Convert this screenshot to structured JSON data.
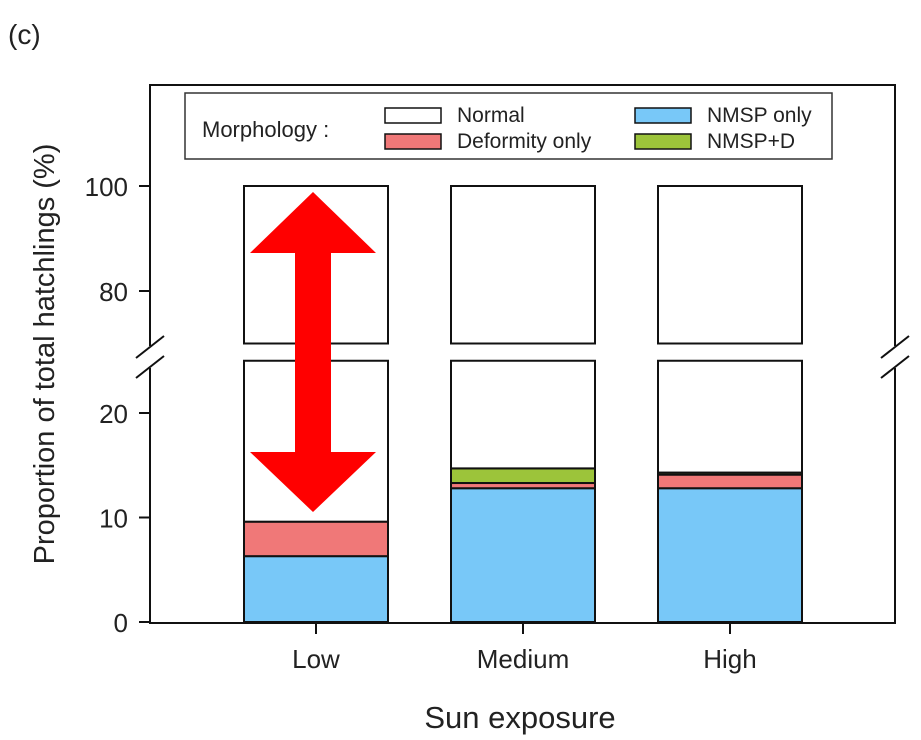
{
  "panel_label": "(c)",
  "legend": {
    "title": "Morphology :",
    "items": [
      {
        "label": "Normal",
        "color": "#ffffff"
      },
      {
        "label": "Deformity only",
        "color": "#f07878"
      },
      {
        "label": "NMSP only",
        "color": "#78c8f8"
      },
      {
        "label": "NMSP+D",
        "color": "#9cc43a"
      }
    ]
  },
  "annotation": {
    "type": "double-headed-arrow",
    "color": "#ff0000"
  },
  "chart_data": {
    "type": "bar",
    "stacked": true,
    "title": "",
    "xlabel": "Sun exposure",
    "ylabel": "Proportion of total hatchlings (%)",
    "categories": [
      "Low",
      "Medium",
      "High"
    ],
    "series": [
      {
        "name": "NMSP only",
        "values": [
          6.3,
          12.8,
          12.8
        ]
      },
      {
        "name": "Deformity only",
        "values": [
          3.3,
          0.5,
          1.3
        ]
      },
      {
        "name": "NMSP+D",
        "values": [
          0.0,
          1.4,
          0.2
        ]
      },
      {
        "name": "Normal",
        "values": [
          90.4,
          85.3,
          85.7
        ]
      }
    ],
    "y_axis_break": [
      25,
      70
    ],
    "ylim_lower": [
      0,
      25
    ],
    "ylim_upper": [
      70,
      120
    ],
    "yticks_lower": [
      0,
      10,
      20
    ],
    "yticks_upper": [
      80,
      100
    ],
    "grid": false,
    "legend_position": "top"
  }
}
